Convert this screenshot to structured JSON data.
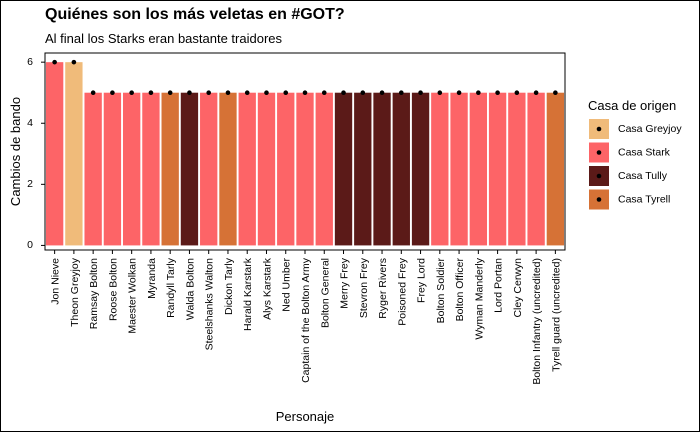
{
  "chart_data": {
    "type": "bar",
    "title": "Quiénes son los más veletas en #GOT?",
    "subtitle": "Al final los Starks eran bastante traidores",
    "xlabel": "Personaje",
    "ylabel": "Cambios de bando",
    "ylim": [
      -0.15,
      6.3
    ],
    "yticks": [
      0,
      2,
      4,
      6
    ],
    "grid": false,
    "legend": {
      "title": "Casa de origen",
      "placement": "right",
      "entries": [
        {
          "name": "Casa Greyjoy",
          "color": "#F0BB7A"
        },
        {
          "name": "Casa Stark",
          "color": "#FD6467"
        },
        {
          "name": "Casa Tully",
          "color": "#5B1A18"
        },
        {
          "name": "Casa Tyrell",
          "color": "#D67236"
        }
      ]
    },
    "categories": [
      "Jon Nieve",
      "Theon Greyjoy",
      "Ramsay Bolton",
      "Roose Bolton",
      "Maester Wolkan",
      "Myranda",
      "Randyll Tarly",
      "Walda Bolton",
      "Steelshanks Walton",
      "Dickon Tarly",
      "Harald Karstark",
      "Alys Karstark",
      "Ned Umber",
      "Captain of the Bolton Army",
      "Bolton General",
      "Merry Frey",
      "Stevron Frey",
      "Ryger Rivers",
      "Poisoned Frey",
      "Frey Lord",
      "Bolton Soldier",
      "Bolton Officer",
      "Wyman Manderly",
      "Lord Portan",
      "Cley Cerwyn",
      "Bolton Infantry (uncredited)",
      "Tyrell guard (uncredited)"
    ],
    "values": [
      6,
      6,
      5,
      5,
      5,
      5,
      5,
      5,
      5,
      5,
      5,
      5,
      5,
      5,
      5,
      5,
      5,
      5,
      5,
      5,
      5,
      5,
      5,
      5,
      5,
      5,
      5
    ],
    "house": [
      "Casa Stark",
      "Casa Greyjoy",
      "Casa Stark",
      "Casa Stark",
      "Casa Stark",
      "Casa Stark",
      "Casa Tyrell",
      "Casa Tully",
      "Casa Stark",
      "Casa Tyrell",
      "Casa Stark",
      "Casa Stark",
      "Casa Stark",
      "Casa Stark",
      "Casa Stark",
      "Casa Tully",
      "Casa Tully",
      "Casa Tully",
      "Casa Tully",
      "Casa Tully",
      "Casa Stark",
      "Casa Stark",
      "Casa Stark",
      "Casa Stark",
      "Casa Stark",
      "Casa Stark",
      "Casa Tyrell"
    ]
  }
}
